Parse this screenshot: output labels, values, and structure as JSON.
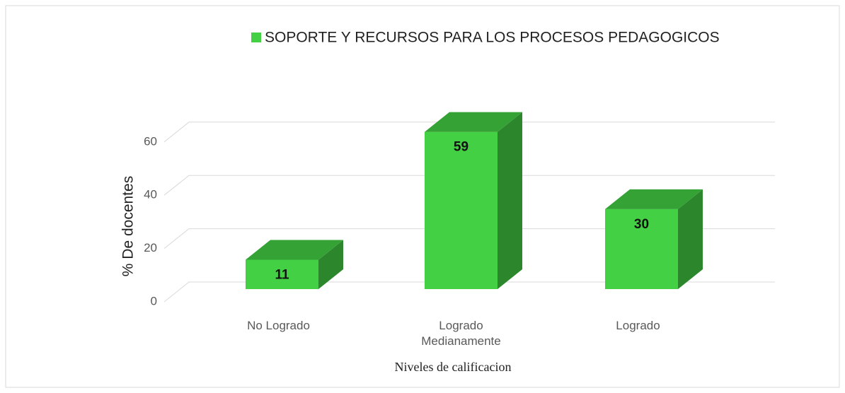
{
  "chart_data": {
    "type": "bar3d",
    "series": [
      {
        "name": "SOPORTE Y RECURSOS PARA LOS PROCESOS PEDAGOGICOS",
        "color": "#44d044",
        "values": [
          11,
          59,
          30
        ]
      }
    ],
    "categories": [
      "No Logrado",
      "Logrado Medianamente",
      "Logrado"
    ],
    "y_label": "% De docentes",
    "x_label": "Niveles de calificacion",
    "ylim": [
      0,
      70
    ],
    "yticks": [
      0,
      20,
      40,
      60
    ],
    "grid": true,
    "legend": "top"
  }
}
